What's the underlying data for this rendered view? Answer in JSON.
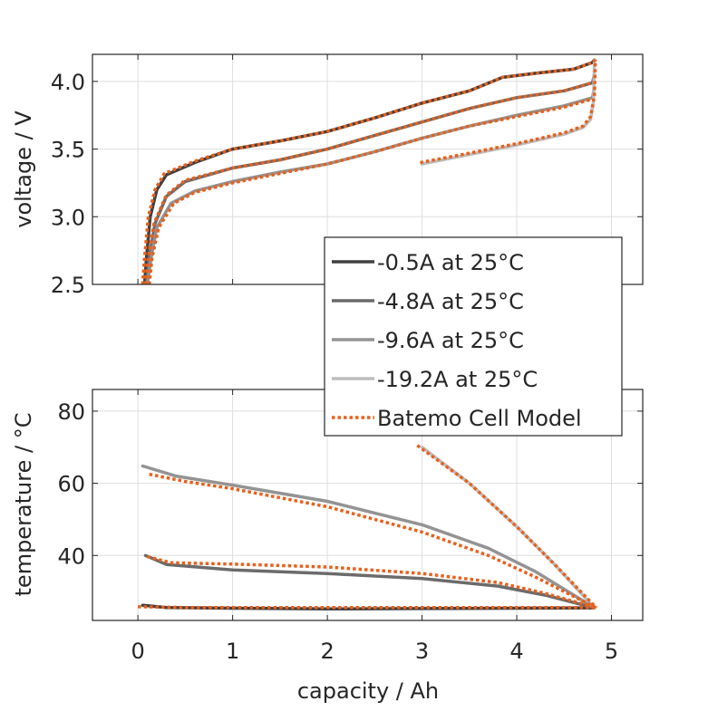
{
  "chart_data": [
    {
      "type": "line",
      "id": "voltage",
      "xlabel": "",
      "ylabel": "voltage / V",
      "xlim": [
        -0.48,
        5.33
      ],
      "ylim": [
        2.5,
        4.2
      ],
      "xticks": [
        0,
        1,
        2,
        3,
        4,
        5
      ],
      "yticks": [
        2.5,
        3.0,
        3.5,
        4.0
      ],
      "ytick_labels": [
        "2.5",
        "3.0",
        "3.5",
        "4.0"
      ],
      "show_xtick_labels": false,
      "grid": true,
      "series": [
        {
          "name": "-0.5A at 25°C",
          "color": "#404040",
          "style": "solid",
          "x": [
            0.07,
            0.09,
            0.13,
            0.2,
            0.3,
            0.6,
            1.0,
            1.5,
            2.0,
            2.5,
            3.0,
            3.5,
            3.85,
            4.2,
            4.6,
            4.8,
            4.82
          ],
          "y": [
            2.5,
            2.7,
            3.0,
            3.2,
            3.31,
            3.4,
            3.5,
            3.56,
            3.63,
            3.73,
            3.84,
            3.93,
            4.03,
            4.06,
            4.09,
            4.14,
            4.16
          ]
        },
        {
          "name": "-4.8A at 25°C",
          "color": "#6b6b6b",
          "style": "solid",
          "x": [
            0.09,
            0.12,
            0.18,
            0.3,
            0.5,
            1.0,
            1.5,
            2.0,
            2.5,
            3.0,
            3.5,
            4.0,
            4.5,
            4.8,
            4.82
          ],
          "y": [
            2.5,
            2.7,
            2.95,
            3.15,
            3.26,
            3.36,
            3.42,
            3.5,
            3.6,
            3.7,
            3.8,
            3.88,
            3.93,
            3.99,
            4.05
          ]
        },
        {
          "name": "-9.6A at 25°C",
          "color": "#939393",
          "style": "solid",
          "x": [
            0.1,
            0.14,
            0.2,
            0.35,
            0.6,
            1.0,
            1.5,
            2.0,
            2.5,
            3.0,
            3.5,
            4.0,
            4.5,
            4.8,
            4.82
          ],
          "y": [
            2.5,
            2.7,
            2.92,
            3.1,
            3.19,
            3.26,
            3.33,
            3.39,
            3.48,
            3.58,
            3.67,
            3.75,
            3.82,
            3.88,
            3.96
          ]
        },
        {
          "name": "-19.2A at 25°C",
          "color": "#bdbdbd",
          "style": "solid",
          "x": [
            3.0,
            3.5,
            4.0,
            4.5,
            4.7,
            4.78,
            4.81,
            4.82
          ],
          "y": [
            3.39,
            3.46,
            3.53,
            3.61,
            3.66,
            3.72,
            3.85,
            4.16
          ]
        },
        {
          "name": "Batemo Cell Model",
          "color": "#e8601c",
          "style": "dotted",
          "segments": [
            {
              "x": [
                0.05,
                0.07,
                0.11,
                0.18,
                0.28,
                0.6,
                1.0,
                1.5,
                2.0,
                2.5,
                3.0,
                3.5,
                3.85,
                4.2,
                4.6,
                4.8,
                4.83
              ],
              "y": [
                2.5,
                2.7,
                3.0,
                3.2,
                3.32,
                3.41,
                3.5,
                3.56,
                3.63,
                3.73,
                3.84,
                3.93,
                4.03,
                4.06,
                4.09,
                4.14,
                4.16
              ]
            },
            {
              "x": [
                0.08,
                0.11,
                0.17,
                0.3,
                0.5,
                1.0,
                1.5,
                2.0,
                2.5,
                3.0,
                3.5,
                4.0,
                4.5,
                4.8
              ],
              "y": [
                2.5,
                2.7,
                2.95,
                3.16,
                3.27,
                3.36,
                3.42,
                3.5,
                3.6,
                3.7,
                3.8,
                3.88,
                3.93,
                3.99
              ]
            },
            {
              "x": [
                0.12,
                0.15,
                0.22,
                0.38,
                0.6,
                1.0,
                1.5,
                2.0,
                2.5,
                3.0,
                3.5,
                4.0,
                4.5,
                4.8
              ],
              "y": [
                2.5,
                2.7,
                2.92,
                3.1,
                3.18,
                3.25,
                3.32,
                3.39,
                3.48,
                3.58,
                3.67,
                3.74,
                3.81,
                3.87
              ]
            },
            {
              "x": [
                2.98,
                3.5,
                4.0,
                4.5,
                4.7,
                4.78,
                4.82,
                4.83
              ],
              "y": [
                3.4,
                3.47,
                3.54,
                3.62,
                3.67,
                3.74,
                3.9,
                4.16
              ]
            }
          ]
        }
      ]
    },
    {
      "type": "line",
      "id": "temperature",
      "xlabel": "capacity / Ah",
      "ylabel": "temperature / °C",
      "xlim": [
        -0.48,
        5.33
      ],
      "ylim": [
        22,
        86
      ],
      "xticks": [
        0,
        1,
        2,
        3,
        4,
        5
      ],
      "xtick_labels": [
        "0",
        "1",
        "2",
        "3",
        "4",
        "5"
      ],
      "yticks": [
        40,
        60,
        80
      ],
      "ytick_labels": [
        "40",
        "60",
        "80"
      ],
      "grid": true,
      "series": [
        {
          "name": "-0.5A at 25°C",
          "color": "#404040",
          "style": "solid",
          "x": [
            0.05,
            0.3,
            1.0,
            2.0,
            3.0,
            4.0,
            4.82
          ],
          "y": [
            26.2,
            25.6,
            25.4,
            25.2,
            25.3,
            25.4,
            25.5
          ]
        },
        {
          "name": "-4.8A at 25°C",
          "color": "#6b6b6b",
          "style": "solid",
          "x": [
            0.08,
            0.3,
            1.0,
            2.0,
            3.0,
            3.8,
            4.3,
            4.82
          ],
          "y": [
            40,
            37.5,
            36,
            35,
            33.6,
            31.5,
            29,
            25.5
          ]
        },
        {
          "name": "-9.6A at 25°C",
          "color": "#939393",
          "style": "solid",
          "x": [
            0.05,
            0.4,
            1.0,
            2.0,
            3.0,
            3.7,
            4.2,
            4.82
          ],
          "y": [
            64.8,
            62,
            59.5,
            55,
            48.5,
            42,
            35.5,
            25.5
          ]
        },
        {
          "name": "-19.2A at 25°C",
          "color": "#bdbdbd",
          "style": "solid",
          "x": [
            3.0,
            3.5,
            4.0,
            4.4,
            4.82
          ],
          "y": [
            70,
            60,
            48,
            37.5,
            25.5
          ]
        },
        {
          "name": "Batemo Cell Model",
          "color": "#e8601c",
          "style": "dotted",
          "segments": [
            {
              "x": [
                0.0,
                0.5,
                1.5,
                2.5,
                3.5,
                4.5,
                4.84
              ],
              "y": [
                25.8,
                25.6,
                25.6,
                25.6,
                25.6,
                25.6,
                25.6
              ]
            },
            {
              "x": [
                0.1,
                0.35,
                1.0,
                2.0,
                3.0,
                3.8,
                4.3,
                4.84
              ],
              "y": [
                39.7,
                38,
                37.6,
                36.8,
                35,
                32.5,
                29.5,
                25.5
              ]
            },
            {
              "x": [
                0.12,
                0.5,
                1.0,
                2.0,
                3.0,
                3.7,
                4.2,
                4.84
              ],
              "y": [
                62.5,
                60.5,
                58.5,
                53.5,
                46.5,
                40,
                34,
                25.5
              ]
            },
            {
              "x": [
                2.95,
                3.5,
                4.0,
                4.4,
                4.84
              ],
              "y": [
                70.5,
                60,
                48,
                37.5,
                25.5
              ]
            }
          ]
        }
      ]
    }
  ],
  "legend": {
    "placement": "center-right",
    "entries": [
      {
        "label": "-0.5A at 25°C",
        "color": "#404040",
        "style": "solid"
      },
      {
        "label": "-4.8A at 25°C",
        "color": "#6b6b6b",
        "style": "solid"
      },
      {
        "label": "-9.6A at 25°C",
        "color": "#939393",
        "style": "solid"
      },
      {
        "label": "-19.2A at 25°C",
        "color": "#bdbdbd",
        "style": "solid"
      },
      {
        "label": "Batemo Cell Model",
        "color": "#e8601c",
        "style": "dotted"
      }
    ]
  }
}
